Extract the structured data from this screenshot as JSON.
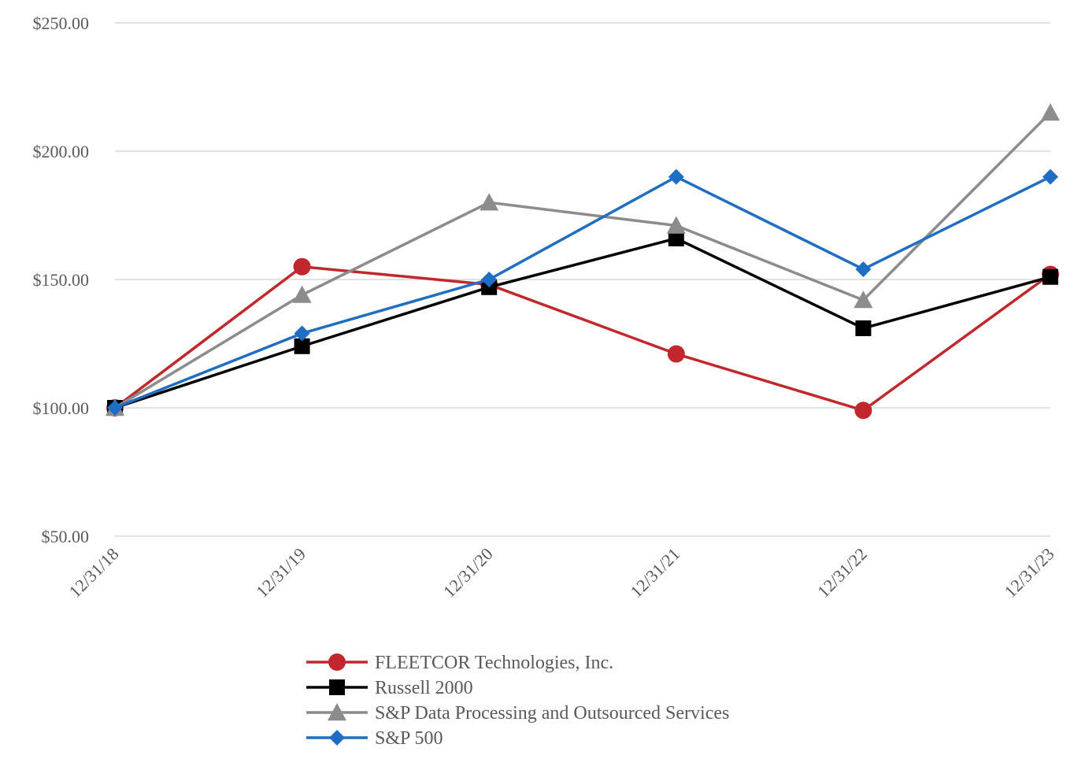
{
  "chart_data": {
    "type": "line",
    "title": "",
    "xlabel": "",
    "ylabel": "",
    "categories": [
      "12/31/18",
      "12/31/19",
      "12/31/20",
      "12/31/21",
      "12/31/22",
      "12/31/23"
    ],
    "ylim": [
      50,
      250
    ],
    "yticks": [
      50,
      100,
      150,
      200,
      250
    ],
    "ytick_labels": [
      "$50.00",
      "$100.00",
      "$150.00",
      "$200.00",
      "$250.00"
    ],
    "grid": true,
    "legend_position": "bottom",
    "series": [
      {
        "name": "FLEETCOR Technologies, Inc.",
        "marker": "circle",
        "color": "#c0282d",
        "values": [
          100,
          155,
          148,
          121,
          99,
          152
        ]
      },
      {
        "name": "Russell 2000",
        "marker": "square",
        "color": "#000000",
        "values": [
          100,
          124,
          147,
          166,
          131,
          151
        ]
      },
      {
        "name": "S&P Data Processing and Outsourced Services",
        "marker": "triangle",
        "color": "#8c8c8c",
        "values": [
          100,
          144,
          180,
          171,
          142,
          215
        ]
      },
      {
        "name": "S&P 500",
        "marker": "diamond",
        "color": "#1f6ec3",
        "values": [
          100,
          129,
          150,
          190,
          154,
          190
        ]
      }
    ]
  }
}
